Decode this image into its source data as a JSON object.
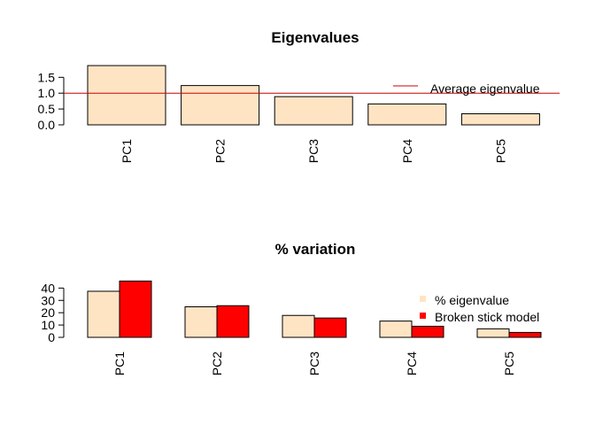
{
  "chart_data": [
    {
      "type": "bar",
      "title": "Eigenvalues",
      "xlabel": "",
      "ylabel": "",
      "categories": [
        "PC1",
        "PC2",
        "PC3",
        "PC4",
        "PC5"
      ],
      "values": [
        1.87,
        1.24,
        0.89,
        0.66,
        0.35
      ],
      "yticks": [
        "0.0",
        "0.5",
        "1.0",
        "1.5"
      ],
      "ylim": [
        0,
        1.9
      ],
      "reference_line": {
        "value": 1.0,
        "label": "Average eigenvalue",
        "color": "#cc0000"
      },
      "bar_color": "#ffe4c4",
      "legend_position": "top-right"
    },
    {
      "type": "bar",
      "title": "% variation",
      "xlabel": "",
      "ylabel": "",
      "categories": [
        "PC1",
        "PC2",
        "PC3",
        "PC4",
        "PC5"
      ],
      "series": [
        {
          "name": "% eigenvalue",
          "values": [
            37.4,
            24.8,
            17.8,
            13.2,
            6.9
          ],
          "color": "#ffe4c4"
        },
        {
          "name": "Broken stick model",
          "values": [
            45.7,
            25.7,
            15.7,
            9.0,
            4.0
          ],
          "color": "#ff0000"
        }
      ],
      "yticks": [
        "0",
        "10",
        "20",
        "30",
        "40"
      ],
      "ylim": [
        0,
        46
      ],
      "legend_position": "top-right"
    }
  ]
}
